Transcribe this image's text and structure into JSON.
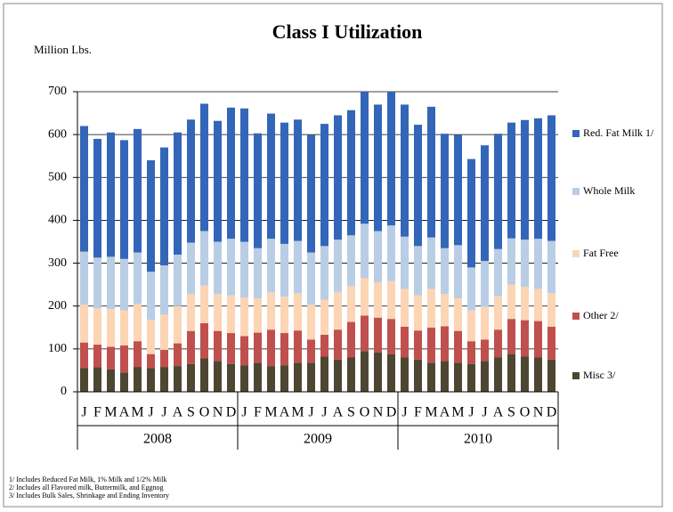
{
  "chart_data": {
    "type": "stacked_bar",
    "title": "Class I Utilization",
    "y_label": "Million Lbs.",
    "categories": [
      "J",
      "F",
      "M",
      "A",
      "M",
      "J",
      "J",
      "A",
      "S",
      "O",
      "N",
      "D",
      "J",
      "F",
      "M",
      "A",
      "M",
      "J",
      "J",
      "A",
      "S",
      "O",
      "N",
      "D",
      "J",
      "F",
      "M",
      "A",
      "M",
      "J",
      "J",
      "A",
      "S",
      "O",
      "N",
      "D"
    ],
    "groups": [
      "2008",
      "2009",
      "2010"
    ],
    "series": [
      {
        "name": "Misc 3/",
        "color": "#4d4632",
        "values": [
          55,
          57,
          52,
          45,
          58,
          55,
          58,
          60,
          65,
          78,
          72,
          65,
          62,
          68,
          60,
          62,
          68,
          68,
          82,
          75,
          80,
          95,
          92,
          88,
          80,
          75,
          68,
          72,
          68,
          65,
          72,
          80,
          88,
          82,
          80,
          75
        ]
      },
      {
        "name": "Other 2/",
        "color": "#c0504d",
        "values": [
          60,
          53,
          53,
          63,
          60,
          33,
          40,
          53,
          77,
          82,
          70,
          72,
          68,
          70,
          85,
          75,
          75,
          54,
          51,
          70,
          83,
          83,
          81,
          82,
          72,
          68,
          82,
          81,
          74,
          53,
          50,
          65,
          82,
          85,
          85,
          77
        ]
      },
      {
        "name": "Fat Free",
        "color": "#fcd5b4",
        "values": [
          88,
          85,
          88,
          82,
          87,
          80,
          82,
          87,
          86,
          88,
          86,
          88,
          90,
          80,
          87,
          85,
          87,
          81,
          82,
          88,
          84,
          87,
          82,
          88,
          88,
          82,
          90,
          75,
          76,
          72,
          76,
          78,
          80,
          78,
          75,
          78
        ]
      },
      {
        "name": "Whole Milk",
        "color": "#b9cde5",
        "values": [
          124,
          118,
          122,
          120,
          120,
          112,
          115,
          120,
          120,
          127,
          122,
          132,
          130,
          117,
          125,
          123,
          122,
          122,
          125,
          122,
          118,
          127,
          120,
          130,
          122,
          115,
          120,
          107,
          124,
          100,
          107,
          110,
          108,
          110,
          117,
          122
        ]
      },
      {
        "name": "Red. Fat Milk 1/",
        "color": "#3366b8",
        "values": [
          293,
          277,
          290,
          277,
          288,
          260,
          275,
          285,
          287,
          297,
          282,
          306,
          311,
          268,
          292,
          283,
          283,
          275,
          285,
          290,
          292,
          308,
          295,
          312,
          308,
          283,
          305,
          267,
          258,
          253,
          270,
          269,
          270,
          279,
          281,
          293
        ]
      }
    ],
    "ylim": [
      0,
      700
    ],
    "yticks": [
      0,
      100,
      200,
      300,
      400,
      500,
      600,
      700
    ],
    "grid": true,
    "legend": "right",
    "footnotes": [
      "1/  Includes Reduced Fat Milk, 1% Milk and 1/2% Milk",
      "2/  Includes all Flavored milk, Buttermilk, and Eggnog",
      "3/  Includes  Bulk Sales, Shrinkage and Ending Inventory"
    ]
  }
}
